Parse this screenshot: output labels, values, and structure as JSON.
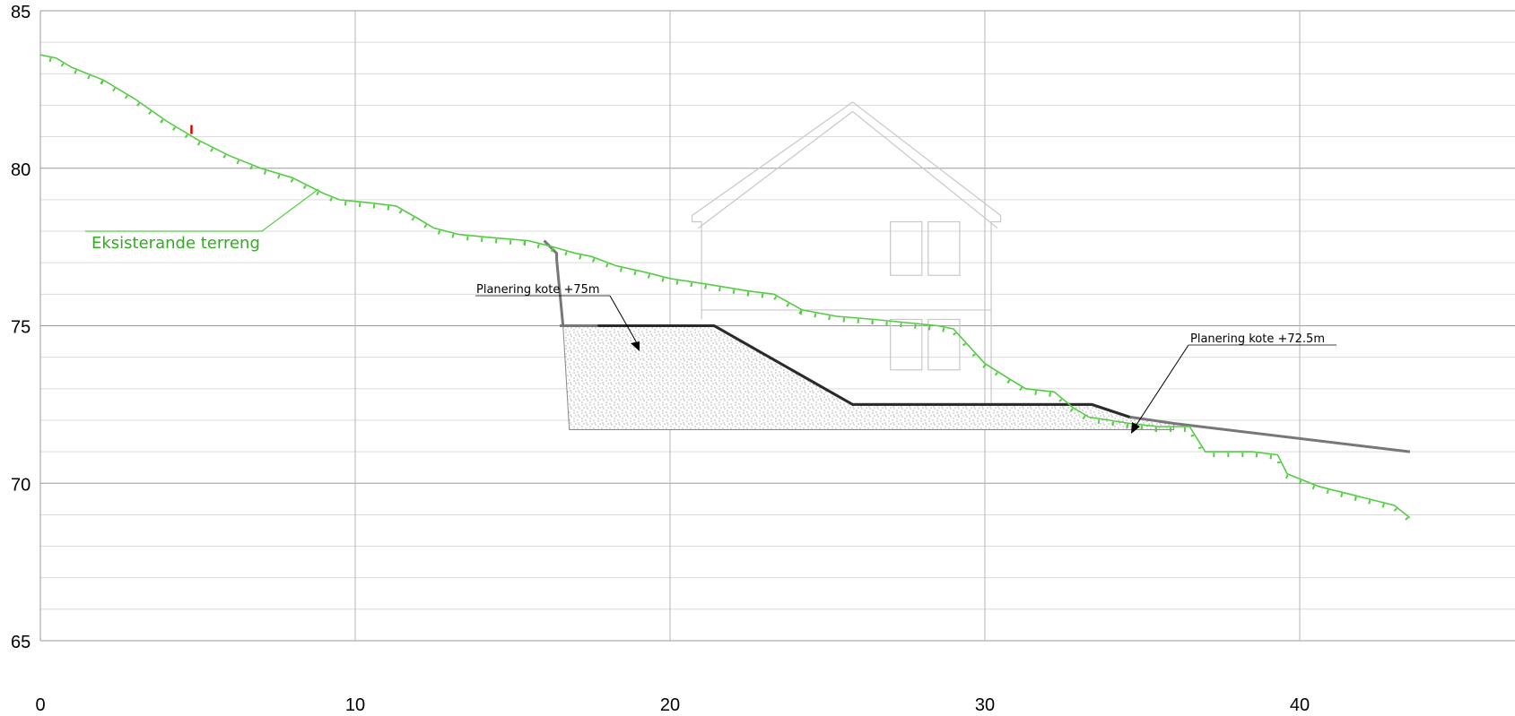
{
  "chart_data": {
    "type": "diagram",
    "x_ticks": [
      0,
      10,
      20,
      30,
      40
    ],
    "y_ticks": [
      65,
      70,
      75,
      80,
      85
    ],
    "xlim": [
      0,
      43.5
    ],
    "ylim": [
      65,
      85
    ],
    "grid": true,
    "existing_terrain": {
      "label": "Eksisterande terreng",
      "color": "#55cc44",
      "points": [
        [
          0,
          83.6
        ],
        [
          0.5,
          83.5
        ],
        [
          1,
          83.2
        ],
        [
          2,
          82.8
        ],
        [
          3,
          82.2
        ],
        [
          4,
          81.5
        ],
        [
          5,
          80.9
        ],
        [
          6,
          80.4
        ],
        [
          7,
          80.0
        ],
        [
          8,
          79.7
        ],
        [
          9,
          79.2
        ],
        [
          9.5,
          79.0
        ],
        [
          10.5,
          78.9
        ],
        [
          11.3,
          78.8
        ],
        [
          12,
          78.4
        ],
        [
          12.5,
          78.1
        ],
        [
          13.3,
          77.9
        ],
        [
          14.3,
          77.8
        ],
        [
          15.5,
          77.7
        ],
        [
          16.3,
          77.5
        ],
        [
          17,
          77.3
        ],
        [
          17.5,
          77.2
        ],
        [
          18.3,
          76.9
        ],
        [
          19.2,
          76.7
        ],
        [
          20,
          76.5
        ],
        [
          21.3,
          76.3
        ],
        [
          22.5,
          76.1
        ],
        [
          23.3,
          76.0
        ],
        [
          24.2,
          75.5
        ],
        [
          25.3,
          75.3
        ],
        [
          26.5,
          75.2
        ],
        [
          27.5,
          75.1
        ],
        [
          28.5,
          75.0
        ],
        [
          29,
          74.9
        ],
        [
          30,
          73.8
        ],
        [
          30.8,
          73.3
        ],
        [
          31.3,
          73.0
        ],
        [
          32.2,
          72.9
        ],
        [
          32.8,
          72.4
        ],
        [
          33.3,
          72.1
        ],
        [
          34.6,
          71.9
        ],
        [
          35.5,
          71.8
        ],
        [
          36.5,
          71.8
        ],
        [
          37.0,
          71.0
        ],
        [
          38.5,
          71.0
        ],
        [
          39.3,
          70.9
        ],
        [
          39.6,
          70.3
        ],
        [
          40.6,
          69.9
        ],
        [
          41.8,
          69.6
        ],
        [
          43.0,
          69.3
        ],
        [
          43.5,
          68.9
        ]
      ]
    },
    "red_marker": [
      4.8,
      81.2
    ],
    "planned_levels": [
      {
        "label": "Planering kote +75m",
        "elevation": 75.0
      },
      {
        "label": "Planering kote +72.5m",
        "elevation": 72.5
      }
    ],
    "new_terrain": [
      [
        16.5,
        75.0
      ],
      [
        21.4,
        75.0
      ],
      [
        25.8,
        72.5
      ],
      [
        33.4,
        72.5
      ],
      [
        34.6,
        72.1
      ],
      [
        36.0,
        71.9
      ],
      [
        43.5,
        71.0
      ]
    ],
    "cut_slope": [
      [
        16.0,
        77.7
      ],
      [
        16.4,
        77.3
      ],
      [
        16.4,
        77.1
      ],
      [
        16.6,
        75.0
      ]
    ],
    "fill_area": [
      [
        16.6,
        75.0
      ],
      [
        21.4,
        75.0
      ],
      [
        25.8,
        72.5
      ],
      [
        33.4,
        72.5
      ],
      [
        34.5,
        72.15
      ],
      [
        36.0,
        71.9
      ],
      [
        36.0,
        71.7
      ],
      [
        16.8,
        71.7
      ]
    ]
  }
}
